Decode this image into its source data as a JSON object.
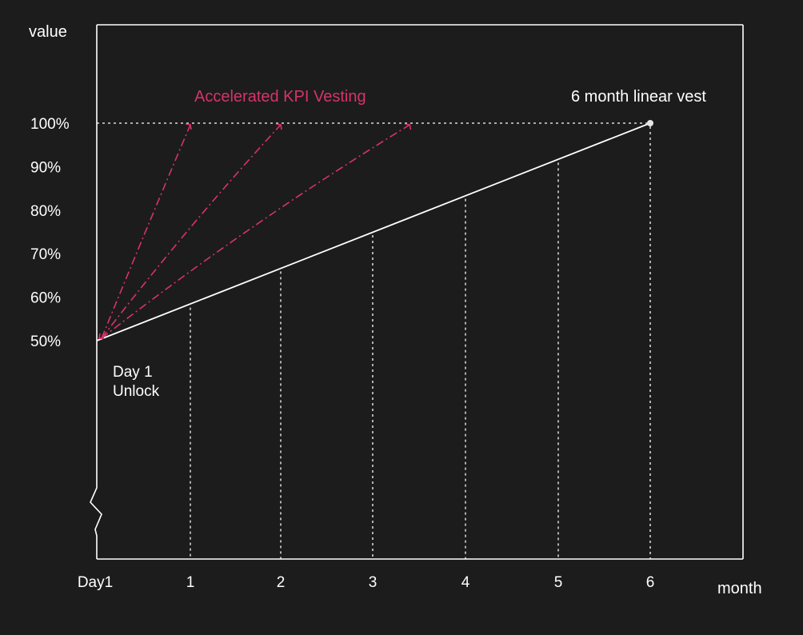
{
  "colors": {
    "background": "#1c1c1c",
    "foreground": "#ffffff",
    "accent": "#d6336c"
  },
  "chart_data": {
    "type": "line",
    "ylabel": "value",
    "xlabel": "month",
    "x_ticks": [
      "Day1",
      "1",
      "2",
      "3",
      "4",
      "5",
      "6"
    ],
    "y_ticks": [
      "50%",
      "60%",
      "70%",
      "80%",
      "90%",
      "100%"
    ],
    "ylim": [
      50,
      100
    ],
    "xlim": [
      0,
      6
    ],
    "y_axis_break": true,
    "grid": false,
    "series": [
      {
        "name": "6 month linear vest",
        "style": "solid",
        "color": "#ffffff",
        "points": [
          [
            0,
            50
          ],
          [
            6,
            100
          ]
        ]
      },
      {
        "style": "dash-dot",
        "color": "#d6336c",
        "points": [
          [
            0,
            50
          ],
          [
            1,
            100
          ]
        ]
      },
      {
        "style": "dash-dot",
        "color": "#d6336c",
        "points": [
          [
            0,
            50
          ],
          [
            2,
            100
          ]
        ]
      },
      {
        "style": "dash-dot",
        "color": "#d6336c",
        "points": [
          [
            0,
            50
          ],
          [
            3.4,
            100
          ]
        ]
      }
    ],
    "annotations": {
      "linear_vest": "6 month linear vest",
      "accelerated": "Accelerated KPI Vesting",
      "day1_line1": "Day 1",
      "day1_line2": "Unlock"
    }
  }
}
